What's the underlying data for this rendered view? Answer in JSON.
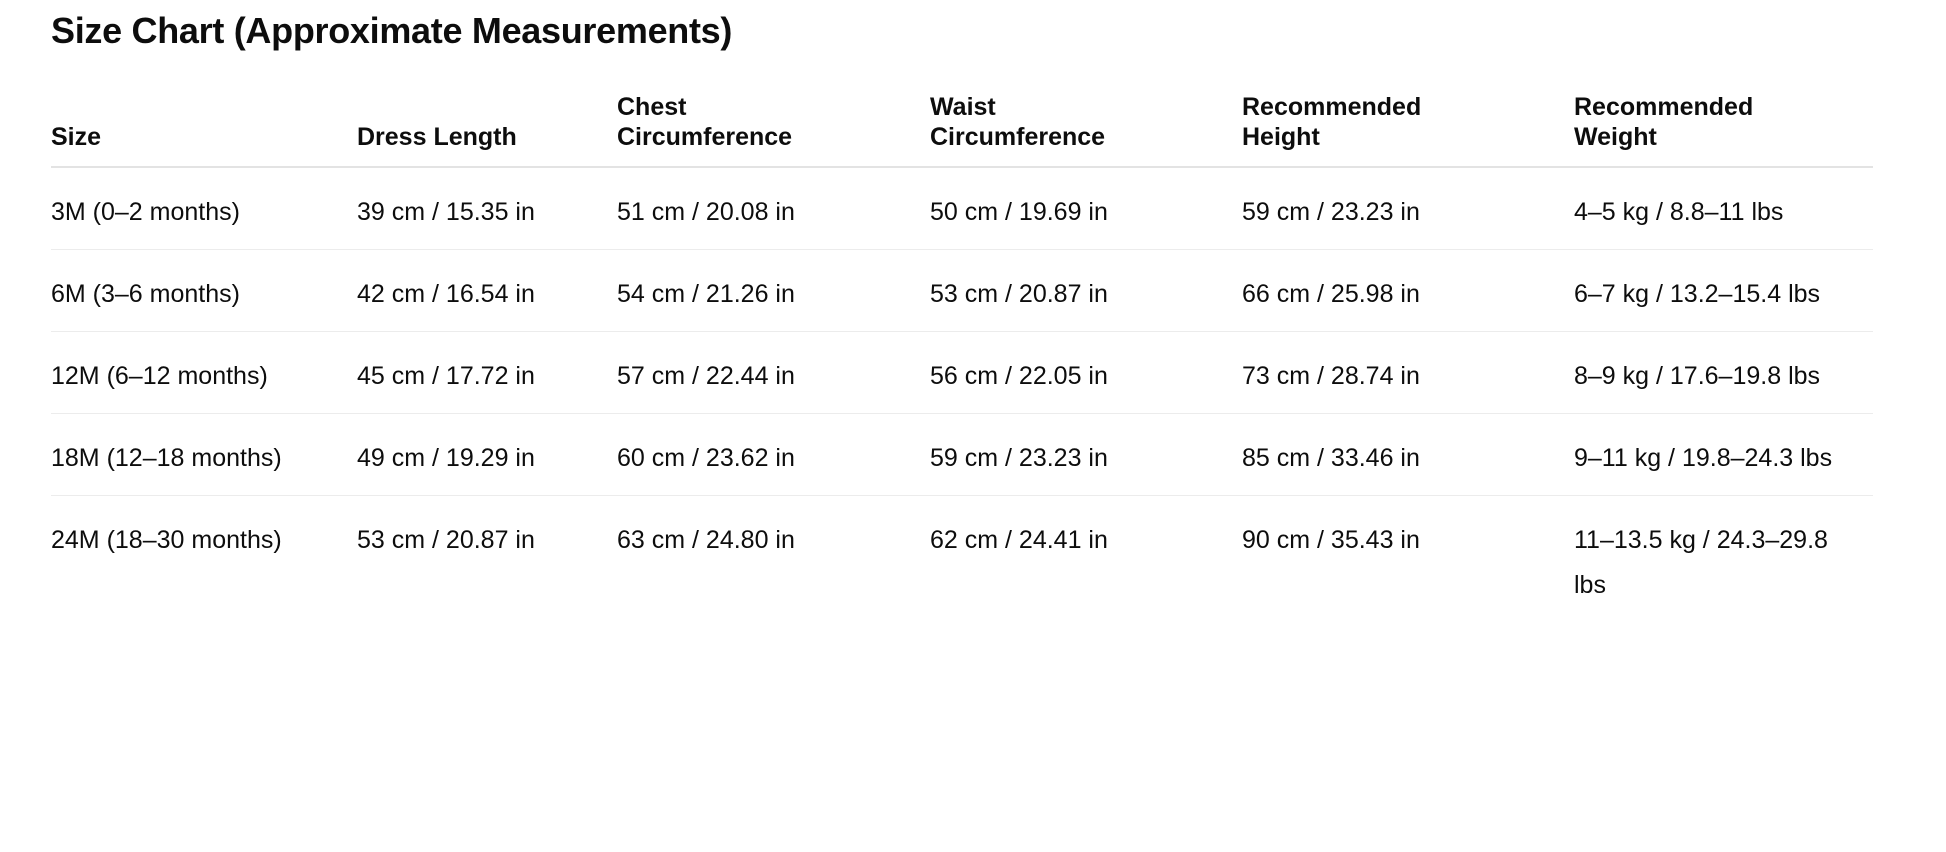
{
  "title": "Size Chart (Approximate Measurements)",
  "headers": [
    [
      "Size"
    ],
    [
      "Dress Length"
    ],
    [
      "Chest",
      "Circumference"
    ],
    [
      "Waist",
      "Circumference"
    ],
    [
      "Recommended",
      "Height"
    ],
    [
      "Recommended",
      "Weight"
    ]
  ],
  "rows": [
    [
      "3M (0–2 months)",
      "39 cm / 15.35 in",
      "51 cm / 20.08 in",
      "50 cm / 19.69 in",
      "59 cm / 23.23 in",
      "4–5 kg / 8.8–11 lbs"
    ],
    [
      "6M (3–6 months)",
      "42 cm / 16.54 in",
      "54 cm / 21.26 in",
      "53 cm / 20.87 in",
      "66 cm / 25.98 in",
      "6–7 kg / 13.2–15.4 lbs"
    ],
    [
      "12M (6–12 months)",
      "45 cm / 17.72 in",
      "57 cm / 22.44 in",
      "56 cm / 22.05 in",
      "73 cm / 28.74 in",
      "8–9 kg / 17.6–19.8 lbs"
    ],
    [
      "18M (12–18 months)",
      "49 cm / 19.29 in",
      "60 cm / 23.62 in",
      "59 cm / 23.23 in",
      "85 cm / 33.46 in",
      "9–11 kg / 19.8–24.3 lbs"
    ],
    [
      "24M (18–30 months)",
      "53 cm / 20.87 in",
      "63 cm / 24.80 in",
      "62 cm / 24.41 in",
      "90 cm / 35.43 in",
      "11–13.5 kg / 24.3–29.8 lbs"
    ]
  ]
}
